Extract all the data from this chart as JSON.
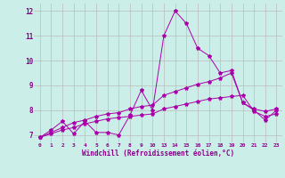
{
  "xlabel": "Windchill (Refroidissement éolien,°C)",
  "bg_color": "#cceee8",
  "line_color": "#aa00aa",
  "grid_color": "#bbbbbb",
  "ylim": [
    6.7,
    12.3
  ],
  "yticks": [
    7,
    8,
    9,
    10,
    11,
    12
  ],
  "x_tick_labels": [
    "0",
    "1",
    "2",
    "3",
    "4",
    "5",
    "6",
    "7",
    "8",
    "9",
    "10",
    "13",
    "14",
    "15",
    "16",
    "17",
    "18",
    "19",
    "20",
    "21",
    "22",
    "23"
  ],
  "series1_y": [
    6.9,
    7.2,
    7.55,
    7.05,
    7.55,
    7.1,
    7.1,
    7.0,
    7.8,
    8.8,
    8.0,
    11.0,
    12.0,
    11.5,
    10.5,
    10.2,
    9.5,
    9.6,
    8.3,
    8.0,
    7.6,
    8.0
  ],
  "series2_y": [
    6.9,
    7.1,
    7.3,
    7.5,
    7.6,
    7.75,
    7.85,
    7.9,
    8.05,
    8.15,
    8.2,
    8.6,
    8.75,
    8.9,
    9.05,
    9.15,
    9.3,
    9.5,
    8.3,
    8.05,
    7.95,
    8.05
  ],
  "series3_y": [
    6.9,
    7.05,
    7.2,
    7.3,
    7.45,
    7.55,
    7.65,
    7.7,
    7.75,
    7.8,
    7.85,
    8.05,
    8.15,
    8.25,
    8.35,
    8.45,
    8.5,
    8.55,
    8.6,
    7.95,
    7.75,
    7.85
  ]
}
